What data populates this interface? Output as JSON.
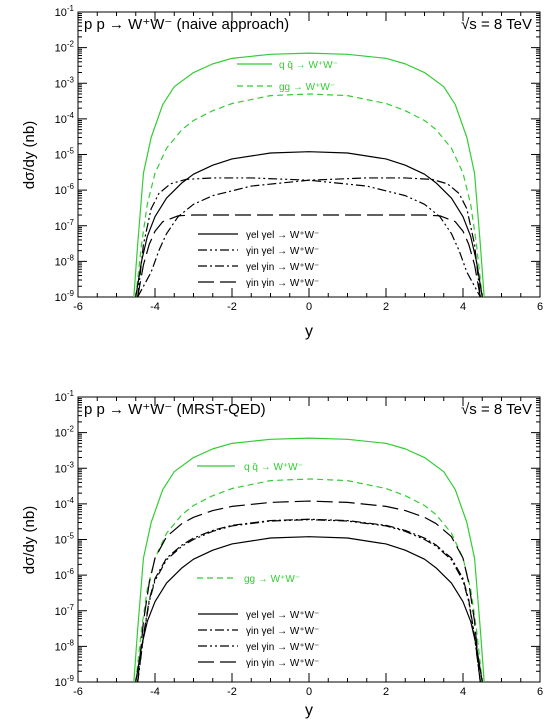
{
  "chart_data": [
    {
      "type": "line",
      "title": "p p → W⁺W⁻ (naive approach)",
      "energy_label": "√s = 8 TeV",
      "xlabel": "y",
      "ylabel": "dσ/dy (nb)",
      "xlim": [
        -6,
        6
      ],
      "ylim": [
        1e-09,
        0.1
      ],
      "yscale": "log",
      "xticks": [
        "-6",
        "-4",
        "-2",
        "0",
        "2",
        "4",
        "6"
      ],
      "yticks_exp": [
        "-9",
        "-8",
        "-7",
        "-6",
        "-5",
        "-4",
        "-3",
        "-2",
        "-1"
      ],
      "ytick_base": "10",
      "grid": false,
      "legends": [
        {
          "position": "top-center",
          "entries": [
            {
              "series": 0,
              "label": "q q̄ → W⁺W⁻"
            },
            {
              "series": 1,
              "label": "gg → W⁺W⁻"
            }
          ]
        },
        {
          "position": "bottom-center",
          "entries": [
            {
              "series": 2,
              "label": "γel γel → W⁺W⁻"
            },
            {
              "series": 3,
              "label": "γin γel → W⁺W⁻"
            },
            {
              "series": 4,
              "label": "γel γin → W⁺W⁻"
            },
            {
              "series": 5,
              "label": "γin γin → W⁺W⁻"
            }
          ]
        }
      ],
      "series": [
        {
          "label": "q q̄ → W⁺W⁻",
          "color": "#33cc33",
          "dash": "solid",
          "x": [
            -4.55,
            -4.45,
            -4.3,
            -4.1,
            -3.8,
            -3.5,
            -3,
            -2.5,
            -2,
            -1,
            0,
            1,
            2,
            2.5,
            3,
            3.5,
            3.8,
            4.1,
            4.3,
            4.45,
            4.55
          ],
          "y": [
            1e-09,
            3e-08,
            3e-06,
            3e-05,
            0.00025,
            0.0008,
            0.002,
            0.0035,
            0.005,
            0.0065,
            0.007,
            0.0065,
            0.005,
            0.0035,
            0.002,
            0.0008,
            0.00025,
            3e-05,
            3e-06,
            3e-08,
            1e-09
          ]
        },
        {
          "label": "gg → W⁺W⁻",
          "color": "#33cc33",
          "dash": "dashed",
          "x": [
            -4.5,
            -4.35,
            -4.2,
            -4,
            -3.7,
            -3.3,
            -3,
            -2.5,
            -2,
            -1,
            0,
            1,
            2,
            2.5,
            3,
            3.3,
            3.7,
            4,
            4.2,
            4.35,
            4.5
          ],
          "y": [
            1e-09,
            3e-08,
            4e-07,
            3e-06,
            1.5e-05,
            5e-05,
            9e-05,
            0.00017,
            0.00027,
            0.00045,
            0.0005,
            0.00045,
            0.00027,
            0.00017,
            9e-05,
            5e-05,
            1.5e-05,
            3e-06,
            4e-07,
            3e-08,
            1e-09
          ]
        },
        {
          "label": "γel γel → W⁺W⁻",
          "color": "#000000",
          "dash": "solid",
          "x": [
            -4.5,
            -4.35,
            -4.2,
            -4,
            -3.7,
            -3.3,
            -3,
            -2.5,
            -2,
            -1,
            0,
            1,
            2,
            2.5,
            3,
            3.3,
            3.7,
            4,
            4.2,
            4.35,
            4.5
          ],
          "y": [
            1e-09,
            1e-08,
            5e-08,
            1.8e-07,
            6e-07,
            1.6e-06,
            2.8e-06,
            5e-06,
            7.5e-06,
            1.1e-05,
            1.2e-05,
            1.1e-05,
            7.5e-06,
            5e-06,
            2.8e-06,
            1.6e-06,
            6e-07,
            1.8e-07,
            5e-08,
            1e-08,
            1e-09
          ]
        },
        {
          "label": "γin γel → W⁺W⁻",
          "color": "#000000",
          "dash": "dashdotdot",
          "x": [
            -4.45,
            -4.3,
            -4.1,
            -3.9,
            -3.6,
            -3.2,
            -2.5,
            -1.5,
            0,
            1.5,
            2.5,
            3,
            3.4,
            3.7,
            3.9,
            4.1,
            4.3,
            4.45
          ],
          "y": [
            1e-09,
            3e-08,
            3e-07,
            8e-07,
            1.5e-06,
            2e-06,
            2.2e-06,
            2.2e-06,
            1.9e-06,
            1.3e-06,
            7e-07,
            4e-07,
            1.8e-07,
            6e-08,
            2e-08,
            5e-09,
            2e-09,
            1e-09
          ]
        },
        {
          "label": "γel γin → W⁺W⁻",
          "color": "#000000",
          "dash": "dashdot",
          "x": [
            -4.45,
            -4.3,
            -4.1,
            -3.9,
            -3.7,
            -3.4,
            -3,
            -2.5,
            -1.5,
            0,
            1.5,
            2.5,
            3.2,
            3.6,
            3.9,
            4.1,
            4.3,
            4.45
          ],
          "y": [
            1e-09,
            2e-09,
            5e-09,
            2e-08,
            6e-08,
            1.8e-07,
            4e-07,
            7e-07,
            1.3e-06,
            1.9e-06,
            2.2e-06,
            2.2e-06,
            2e-06,
            1.5e-06,
            8e-07,
            3e-07,
            3e-08,
            1e-09
          ]
        },
        {
          "label": "γin γin → W⁺W⁻",
          "color": "#000000",
          "dash": "longdash",
          "x": [
            -4.45,
            -4.3,
            -4.15,
            -4,
            -3.8,
            -3.4,
            -3,
            -2,
            0,
            2,
            3,
            3.4,
            3.8,
            4,
            4.15,
            4.3,
            4.45
          ],
          "y": [
            1e-09,
            8e-09,
            3e-08,
            7e-08,
            1.3e-07,
            1.9e-07,
            2e-07,
            2e-07,
            2e-07,
            2e-07,
            2e-07,
            1.9e-07,
            1.3e-07,
            7e-08,
            3e-08,
            8e-09,
            1e-09
          ]
        }
      ]
    },
    {
      "type": "line",
      "title": "p p → W⁺W⁻ (MRST-QED)",
      "energy_label": "√s = 8 TeV",
      "xlabel": "y",
      "ylabel": "dσ/dy (nb)",
      "xlim": [
        -6,
        6
      ],
      "ylim": [
        1e-09,
        0.1
      ],
      "yscale": "log",
      "xticks": [
        "-6",
        "-4",
        "-2",
        "0",
        "2",
        "4",
        "6"
      ],
      "yticks_exp": [
        "-9",
        "-8",
        "-7",
        "-6",
        "-5",
        "-4",
        "-3",
        "-2",
        "-1"
      ],
      "ytick_base": "10",
      "grid": false,
      "legends": [
        {
          "position": "upper-center",
          "entries": [
            {
              "series": 0,
              "label": "q q̄ → W⁺W⁻"
            }
          ]
        },
        {
          "position": "middle-left",
          "entries": [
            {
              "series": 1,
              "label": "gg → W⁺W⁻"
            }
          ]
        },
        {
          "position": "bottom-center",
          "entries": [
            {
              "series": 2,
              "label": "γel γel → W⁺W⁻"
            },
            {
              "series": 3,
              "label": "γin γel → W⁺W⁻"
            },
            {
              "series": 4,
              "label": "γel γin → W⁺W⁻"
            },
            {
              "series": 5,
              "label": "γin γin → W⁺W⁻"
            }
          ]
        }
      ],
      "series": [
        {
          "label": "q q̄ → W⁺W⁻",
          "color": "#33cc33",
          "dash": "solid",
          "x": [
            -4.55,
            -4.45,
            -4.3,
            -4.1,
            -3.8,
            -3.5,
            -3,
            -2.5,
            -2,
            -1,
            0,
            1,
            2,
            2.5,
            3,
            3.5,
            3.8,
            4.1,
            4.3,
            4.45,
            4.55
          ],
          "y": [
            1e-09,
            3e-08,
            3e-06,
            3e-05,
            0.00025,
            0.0008,
            0.002,
            0.0035,
            0.005,
            0.0065,
            0.007,
            0.0065,
            0.005,
            0.0035,
            0.002,
            0.0008,
            0.00025,
            3e-05,
            3e-06,
            3e-08,
            1e-09
          ]
        },
        {
          "label": "gg → W⁺W⁻",
          "color": "#33cc33",
          "dash": "dashed",
          "x": [
            -4.5,
            -4.35,
            -4.2,
            -4,
            -3.7,
            -3.3,
            -3,
            -2.5,
            -2,
            -1,
            0,
            1,
            2,
            2.5,
            3,
            3.3,
            3.7,
            4,
            4.2,
            4.35,
            4.5
          ],
          "y": [
            1e-09,
            3e-08,
            4e-07,
            3e-06,
            1.5e-05,
            5e-05,
            9e-05,
            0.00017,
            0.00027,
            0.00045,
            0.0005,
            0.00045,
            0.00027,
            0.00017,
            9e-05,
            5e-05,
            1.5e-05,
            3e-06,
            4e-07,
            3e-08,
            1e-09
          ]
        },
        {
          "label": "γel γel → W⁺W⁻",
          "color": "#000000",
          "dash": "solid",
          "x": [
            -4.5,
            -4.35,
            -4.2,
            -4,
            -3.7,
            -3.3,
            -3,
            -2.5,
            -2,
            -1,
            0,
            1,
            2,
            2.5,
            3,
            3.3,
            3.7,
            4,
            4.2,
            4.35,
            4.5
          ],
          "y": [
            1e-09,
            1e-08,
            5e-08,
            1.8e-07,
            6e-07,
            1.6e-06,
            2.8e-06,
            5e-06,
            7.5e-06,
            1.1e-05,
            1.2e-05,
            1.1e-05,
            7.5e-06,
            5e-06,
            2.8e-06,
            1.6e-06,
            6e-07,
            1.8e-07,
            5e-08,
            1e-08,
            1e-09
          ]
        },
        {
          "label": "γin γel → W⁺W⁻",
          "color": "#000000",
          "dash": "dashdot",
          "x": [
            -4.45,
            -4.3,
            -4.15,
            -4,
            -3.7,
            -3.3,
            -3,
            -2.5,
            -2,
            -1,
            0,
            1,
            2,
            2.5,
            3,
            3.3,
            3.7,
            4,
            4.15,
            4.3,
            4.45
          ],
          "y": [
            1e-09,
            2e-08,
            2e-07,
            8e-07,
            3e-06,
            7e-06,
            1.1e-05,
            1.8e-05,
            2.5e-05,
            3.4e-05,
            3.7e-05,
            3.4e-05,
            2.5e-05,
            1.8e-05,
            1.1e-05,
            7e-06,
            3e-06,
            8e-07,
            2e-07,
            2e-08,
            1e-09
          ]
        },
        {
          "label": "γel γin → W⁺W⁻",
          "color": "#000000",
          "dash": "dashdotdot",
          "x": [
            -4.45,
            -4.3,
            -4.15,
            -4,
            -3.7,
            -3.3,
            -3,
            -2.5,
            -2,
            -1,
            0,
            1,
            2,
            2.5,
            3,
            3.3,
            3.7,
            4,
            4.15,
            4.3,
            4.45
          ],
          "y": [
            1e-09,
            1.8e-08,
            1.8e-07,
            7e-07,
            2.7e-06,
            6.5e-06,
            1e-05,
            1.7e-05,
            2.4e-05,
            3.3e-05,
            3.6e-05,
            3.3e-05,
            2.4e-05,
            1.7e-05,
            1e-05,
            6.5e-06,
            2.7e-06,
            7e-07,
            1.8e-07,
            1.8e-08,
            1e-09
          ]
        },
        {
          "label": "γin γin → W⁺W⁻",
          "color": "#000000",
          "dash": "longdash",
          "x": [
            -4.45,
            -4.3,
            -4.15,
            -4,
            -3.7,
            -3.3,
            -3,
            -2.5,
            -2,
            -1,
            0,
            1,
            2,
            2.5,
            3,
            3.3,
            3.7,
            4,
            4.15,
            4.3,
            4.45
          ],
          "y": [
            1e-09,
            5e-08,
            6e-07,
            3e-06,
            1.2e-05,
            2.8e-05,
            4.2e-05,
            6.5e-05,
            8.5e-05,
            0.00011,
            0.00012,
            0.00011,
            8.5e-05,
            6.5e-05,
            4.2e-05,
            2.8e-05,
            1.2e-05,
            3e-06,
            6e-07,
            5e-08,
            1e-09
          ]
        }
      ]
    }
  ]
}
